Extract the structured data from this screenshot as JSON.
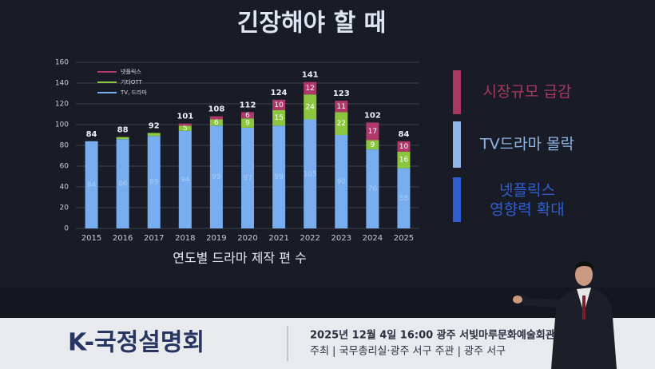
{
  "chart_data": {
    "type": "stacked-bar",
    "title": "긴장해야 할 때",
    "x_label": "연도별 드라마 제작 편 수",
    "categories": [
      "2015",
      "2016",
      "2017",
      "2018",
      "2019",
      "2020",
      "2021",
      "2022",
      "2023",
      "2024",
      "2025"
    ],
    "series": [
      {
        "name": "TV, 드라마",
        "color": "#78aef0",
        "values": [
          84,
          86,
          89,
          94,
          99,
          97,
          99,
          105,
          90,
          76,
          58
        ]
      },
      {
        "name": "기타OTT",
        "color": "#8cc63f",
        "values": [
          0,
          2,
          3,
          5,
          6,
          9,
          15,
          24,
          22,
          9,
          16
        ]
      },
      {
        "name": "넷플릭스",
        "color": "#b0386a",
        "values": [
          0,
          0,
          0,
          2,
          3,
          6,
          10,
          12,
          11,
          17,
          10
        ]
      }
    ],
    "totals": [
      84,
      88,
      92,
      101,
      108,
      112,
      124,
      141,
      123,
      102,
      84
    ],
    "ylim": [
      0,
      160
    ],
    "yticks": [
      0,
      20,
      40,
      60,
      80,
      100,
      120,
      140,
      160
    ],
    "grid": true
  },
  "side_notes": [
    {
      "text": "시장규모 급감",
      "color": "#a8385f"
    },
    {
      "text": "TV드라마 몰락",
      "color": "#8fb4e6"
    },
    {
      "text": "넷플릭스 영향력 확대",
      "color": "#2f5fcf"
    }
  ],
  "banner": {
    "logo": "K-국정설명회",
    "line1": "2025년 12월 4일 16:00  광주 서빛마루문화예술회관",
    "line2": "주최 | 국무총리실·광주 서구  주관 | 광주 서구"
  }
}
